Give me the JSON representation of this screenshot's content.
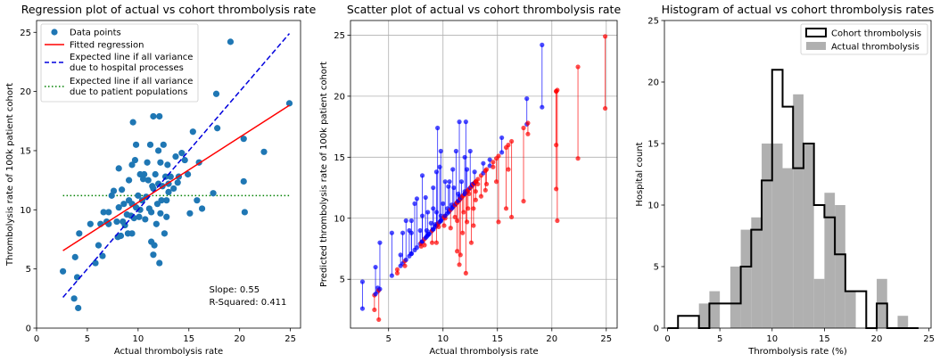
{
  "chart_data": [
    {
      "type": "scatter",
      "title": "Regression plot of actual vs cohort thrombolysis rate",
      "xlabel": "Actual thrombolysis rate",
      "ylabel": "Thrombolysis rate of 100k patient cohort",
      "xlim": [
        0,
        26
      ],
      "ylim": [
        0,
        26
      ],
      "xticks": [
        0,
        5,
        10,
        15,
        20,
        25
      ],
      "yticks": [
        0,
        5,
        10,
        15,
        20,
        25
      ],
      "grid": false,
      "legend_position": "top-left",
      "legend": [
        "Data points",
        "Fitted regression",
        "Expected line if all variance\ndue to hospital processes",
        "Expected line if all variance\ndue to patient populations"
      ],
      "colors": {
        "points": "#1f77b4",
        "regression": "#ff0000",
        "hospital": "#0000dd",
        "patient": "#008000"
      },
      "points": [
        [
          2.6,
          4.8
        ],
        [
          3.7,
          2.5
        ],
        [
          3.8,
          6.0
        ],
        [
          4.0,
          4.3
        ],
        [
          4.1,
          1.7
        ],
        [
          4.2,
          8.0
        ],
        [
          5.3,
          8.8
        ],
        [
          5.8,
          5.5
        ],
        [
          6.1,
          7.0
        ],
        [
          6.3,
          8.8
        ],
        [
          6.5,
          6.1
        ],
        [
          6.6,
          9.8
        ],
        [
          6.9,
          9.0
        ],
        [
          7.1,
          8.8
        ],
        [
          7.1,
          9.8
        ],
        [
          7.4,
          11.2
        ],
        [
          7.6,
          11.6
        ],
        [
          7.9,
          9.0
        ],
        [
          8.0,
          7.7
        ],
        [
          8.1,
          10.2
        ],
        [
          8.1,
          13.5
        ],
        [
          8.3,
          7.8
        ],
        [
          8.4,
          11.7
        ],
        [
          8.5,
          9.0
        ],
        [
          8.6,
          10.5
        ],
        [
          8.7,
          8.7
        ],
        [
          8.9,
          9.6
        ],
        [
          9.0,
          8.0
        ],
        [
          9.1,
          10.8
        ],
        [
          9.1,
          12.5
        ],
        [
          9.3,
          9.5
        ],
        [
          9.4,
          8.0
        ],
        [
          9.4,
          10.5
        ],
        [
          9.4,
          13.8
        ],
        [
          9.5,
          17.4
        ],
        [
          9.6,
          9.3
        ],
        [
          9.7,
          14.2
        ],
        [
          9.8,
          10.2
        ],
        [
          9.8,
          15.5
        ],
        [
          10.0,
          11.2
        ],
        [
          10.1,
          9.4
        ],
        [
          10.2,
          10.0
        ],
        [
          10.2,
          13.0
        ],
        [
          10.4,
          10.8
        ],
        [
          10.5,
          12.6
        ],
        [
          10.6,
          13.0
        ],
        [
          10.7,
          9.2
        ],
        [
          10.8,
          11.1
        ],
        [
          10.9,
          14.0
        ],
        [
          11.0,
          12.5
        ],
        [
          11.1,
          10.1
        ],
        [
          11.2,
          15.5
        ],
        [
          11.3,
          7.3
        ],
        [
          11.3,
          9.8
        ],
        [
          11.4,
          12.0
        ],
        [
          11.5,
          6.2
        ],
        [
          11.5,
          11.8
        ],
        [
          11.5,
          17.9
        ],
        [
          11.6,
          7.0
        ],
        [
          11.7,
          13.0
        ],
        [
          11.8,
          8.8
        ],
        [
          11.9,
          10.5
        ],
        [
          12.0,
          12.2
        ],
        [
          12.0,
          15.0
        ],
        [
          12.1,
          5.5
        ],
        [
          12.1,
          17.9
        ],
        [
          12.2,
          9.7
        ],
        [
          12.2,
          14.0
        ],
        [
          12.3,
          10.8
        ],
        [
          12.4,
          12.0
        ],
        [
          12.5,
          15.5
        ],
        [
          12.6,
          8.0
        ],
        [
          12.7,
          12.8
        ],
        [
          12.8,
          9.4
        ],
        [
          12.8,
          10.8
        ],
        [
          12.9,
          13.8
        ],
        [
          13.0,
          11.5
        ],
        [
          13.0,
          12.2
        ],
        [
          13.2,
          12.8
        ],
        [
          13.5,
          11.8
        ],
        [
          13.7,
          14.5
        ],
        [
          13.9,
          12.3
        ],
        [
          14.0,
          12.8
        ],
        [
          14.3,
          14.8
        ],
        [
          14.6,
          14.2
        ],
        [
          14.9,
          13.0
        ],
        [
          15.1,
          9.7
        ],
        [
          15.4,
          16.6
        ],
        [
          15.8,
          10.8
        ],
        [
          16.0,
          14.0
        ],
        [
          16.3,
          10.1
        ],
        [
          17.4,
          11.4
        ],
        [
          17.7,
          19.8
        ],
        [
          17.8,
          16.9
        ],
        [
          19.1,
          24.2
        ],
        [
          20.4,
          16.0
        ],
        [
          20.4,
          12.4
        ],
        [
          20.5,
          9.8
        ],
        [
          22.4,
          14.9
        ],
        [
          24.9,
          19.0
        ]
      ],
      "regression": {
        "x": [
          2.6,
          24.9
        ],
        "y": [
          6.55,
          18.83
        ]
      },
      "hospital_line": {
        "x": [
          2.6,
          24.9
        ],
        "y": [
          2.6,
          24.9
        ]
      },
      "patient_line": {
        "x": [
          2.6,
          24.9
        ],
        "y": [
          11.2,
          11.2
        ]
      },
      "annotations": [
        "Slope: 0.55",
        "R-Squared: 0.411"
      ]
    },
    {
      "type": "scatter",
      "title": "Scatter plot of actual vs cohort thrombolysis rate",
      "xlabel": "Actual thrombolysis rate",
      "ylabel": "Predicted thrombolysis rate of 100k patient cohort",
      "xlim": [
        1.5,
        26
      ],
      "ylim": [
        1.0,
        26.2
      ],
      "xticks": [
        5,
        10,
        15,
        20,
        25
      ],
      "yticks": [
        5,
        10,
        15,
        20,
        25
      ],
      "grid": true,
      "colors": {
        "up": "#0000ff",
        "down": "#ff0000"
      },
      "note": "Each hospital drawn as a vertical segment from (actual, actual) to (actual, cohort); blue where cohort > actual, red where cohort < actual."
    },
    {
      "type": "histogram",
      "title": "Histogram of actual vs cohort thrombolysis rates",
      "xlabel": "Thrombolysis rate (%)",
      "ylabel": "Hospital count",
      "xlim": [
        -0.3,
        25.2
      ],
      "ylim": [
        0,
        25
      ],
      "xticks": [
        0,
        5,
        10,
        15,
        20,
        25
      ],
      "yticks": [
        0,
        5,
        10,
        15,
        20,
        25
      ],
      "grid": false,
      "legend_position": "top-right",
      "bin_edges": [
        0,
        1,
        2,
        3,
        4,
        5,
        6,
        7,
        8,
        9,
        10,
        11,
        12,
        13,
        14,
        15,
        16,
        17,
        18,
        19,
        20,
        21,
        22,
        23,
        24
      ],
      "series": [
        {
          "name": "Cohort thrombolysis",
          "style": "step",
          "color": "#000000",
          "values": [
            0,
            1,
            1,
            0,
            2,
            2,
            2,
            5,
            8,
            12,
            21,
            18,
            13,
            15,
            10,
            9,
            6,
            3,
            3,
            0,
            2,
            0,
            0,
            0
          ]
        },
        {
          "name": "Actual thrombolysis",
          "style": "bar",
          "color": "#b0b0b0",
          "values": [
            0,
            0,
            0,
            2,
            3,
            0,
            5,
            8,
            9,
            15,
            15,
            13,
            19,
            15,
            4,
            11,
            10,
            3,
            0,
            0,
            4,
            0,
            1,
            0
          ]
        }
      ]
    }
  ]
}
